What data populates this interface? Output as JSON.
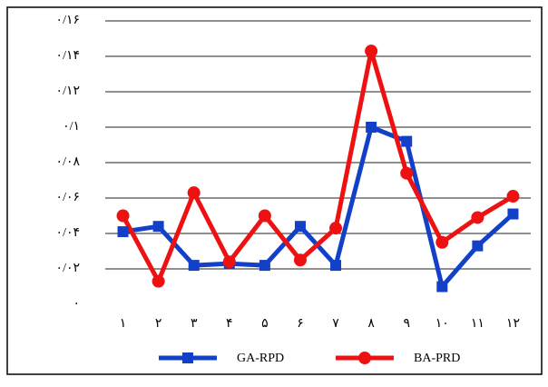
{
  "chart_data": {
    "type": "line",
    "categories": [
      "۱",
      "۲",
      "۳",
      "۴",
      "۵",
      "۶",
      "۷",
      "۸",
      "۹",
      "۱۰",
      "۱۱",
      "۱۲"
    ],
    "series": [
      {
        "name": "GA-RPD",
        "color": "#1240c8",
        "marker": "square",
        "values": [
          0.041,
          0.044,
          0.022,
          0.023,
          0.022,
          0.044,
          0.022,
          0.1,
          0.092,
          0.01,
          0.033,
          0.051
        ]
      },
      {
        "name": "BA-PRD",
        "color": "#ee1111",
        "marker": "circle",
        "values": [
          0.05,
          0.013,
          0.063,
          0.024,
          0.05,
          0.025,
          0.043,
          0.143,
          0.074,
          0.035,
          0.049,
          0.061
        ]
      }
    ],
    "ylim": [
      0,
      0.16
    ],
    "yticks": [
      {
        "value": 0,
        "label": "۰"
      },
      {
        "value": 0.02,
        "label": "۰/۰۲"
      },
      {
        "value": 0.04,
        "label": "۰/۰۴"
      },
      {
        "value": 0.06,
        "label": "۰/۰۶"
      },
      {
        "value": 0.08,
        "label": "۰/۰۸"
      },
      {
        "value": 0.1,
        "label": "۰/۱"
      },
      {
        "value": 0.12,
        "label": "۰/۱۲"
      },
      {
        "value": 0.14,
        "label": "۰/۱۴"
      },
      {
        "value": 0.16,
        "label": "۰/۱۶"
      }
    ],
    "grid": true,
    "legend": "bottom"
  }
}
